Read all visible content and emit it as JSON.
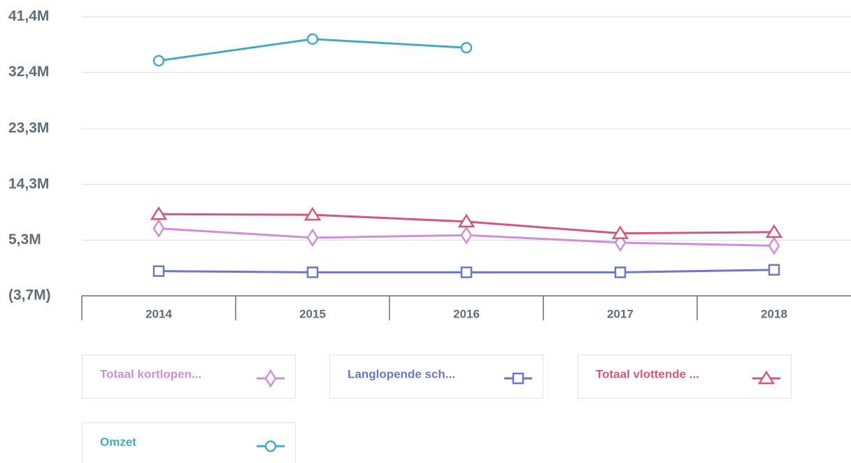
{
  "chart_data": {
    "type": "line",
    "categories": [
      "2014",
      "2015",
      "2016",
      "2017",
      "2018"
    ],
    "series": [
      {
        "name": "Totaal kortlopen...",
        "color": "#cf8ed9",
        "marker": "diamond",
        "values": [
          7.2,
          5.7,
          6.1,
          4.9,
          4.4
        ]
      },
      {
        "name": "Langlopende sch...",
        "color": "#6c76c5",
        "marker": "square",
        "values": [
          0.3,
          0.1,
          0.1,
          0.1,
          0.5
        ]
      },
      {
        "name": "Totaal vlottende ...",
        "color": "#d2587a",
        "marker": "triangle",
        "values": [
          9.5,
          9.4,
          8.3,
          6.4,
          6.6
        ]
      },
      {
        "name": "Omzet",
        "color": "#45a9c4",
        "marker": "circle",
        "values": [
          34.3,
          37.8,
          36.4,
          null,
          null
        ]
      }
    ],
    "ylim": [
      -3.7,
      41.4
    ],
    "yticks": [
      {
        "value": -3.7,
        "label": "(3,7M)"
      },
      {
        "value": 5.3,
        "label": "5,3M"
      },
      {
        "value": 14.3,
        "label": "14,3M"
      },
      {
        "value": 23.3,
        "label": "23,3M"
      },
      {
        "value": 32.4,
        "label": "32,4M"
      },
      {
        "value": 41.4,
        "label": "41,4M"
      }
    ],
    "grid": true
  }
}
